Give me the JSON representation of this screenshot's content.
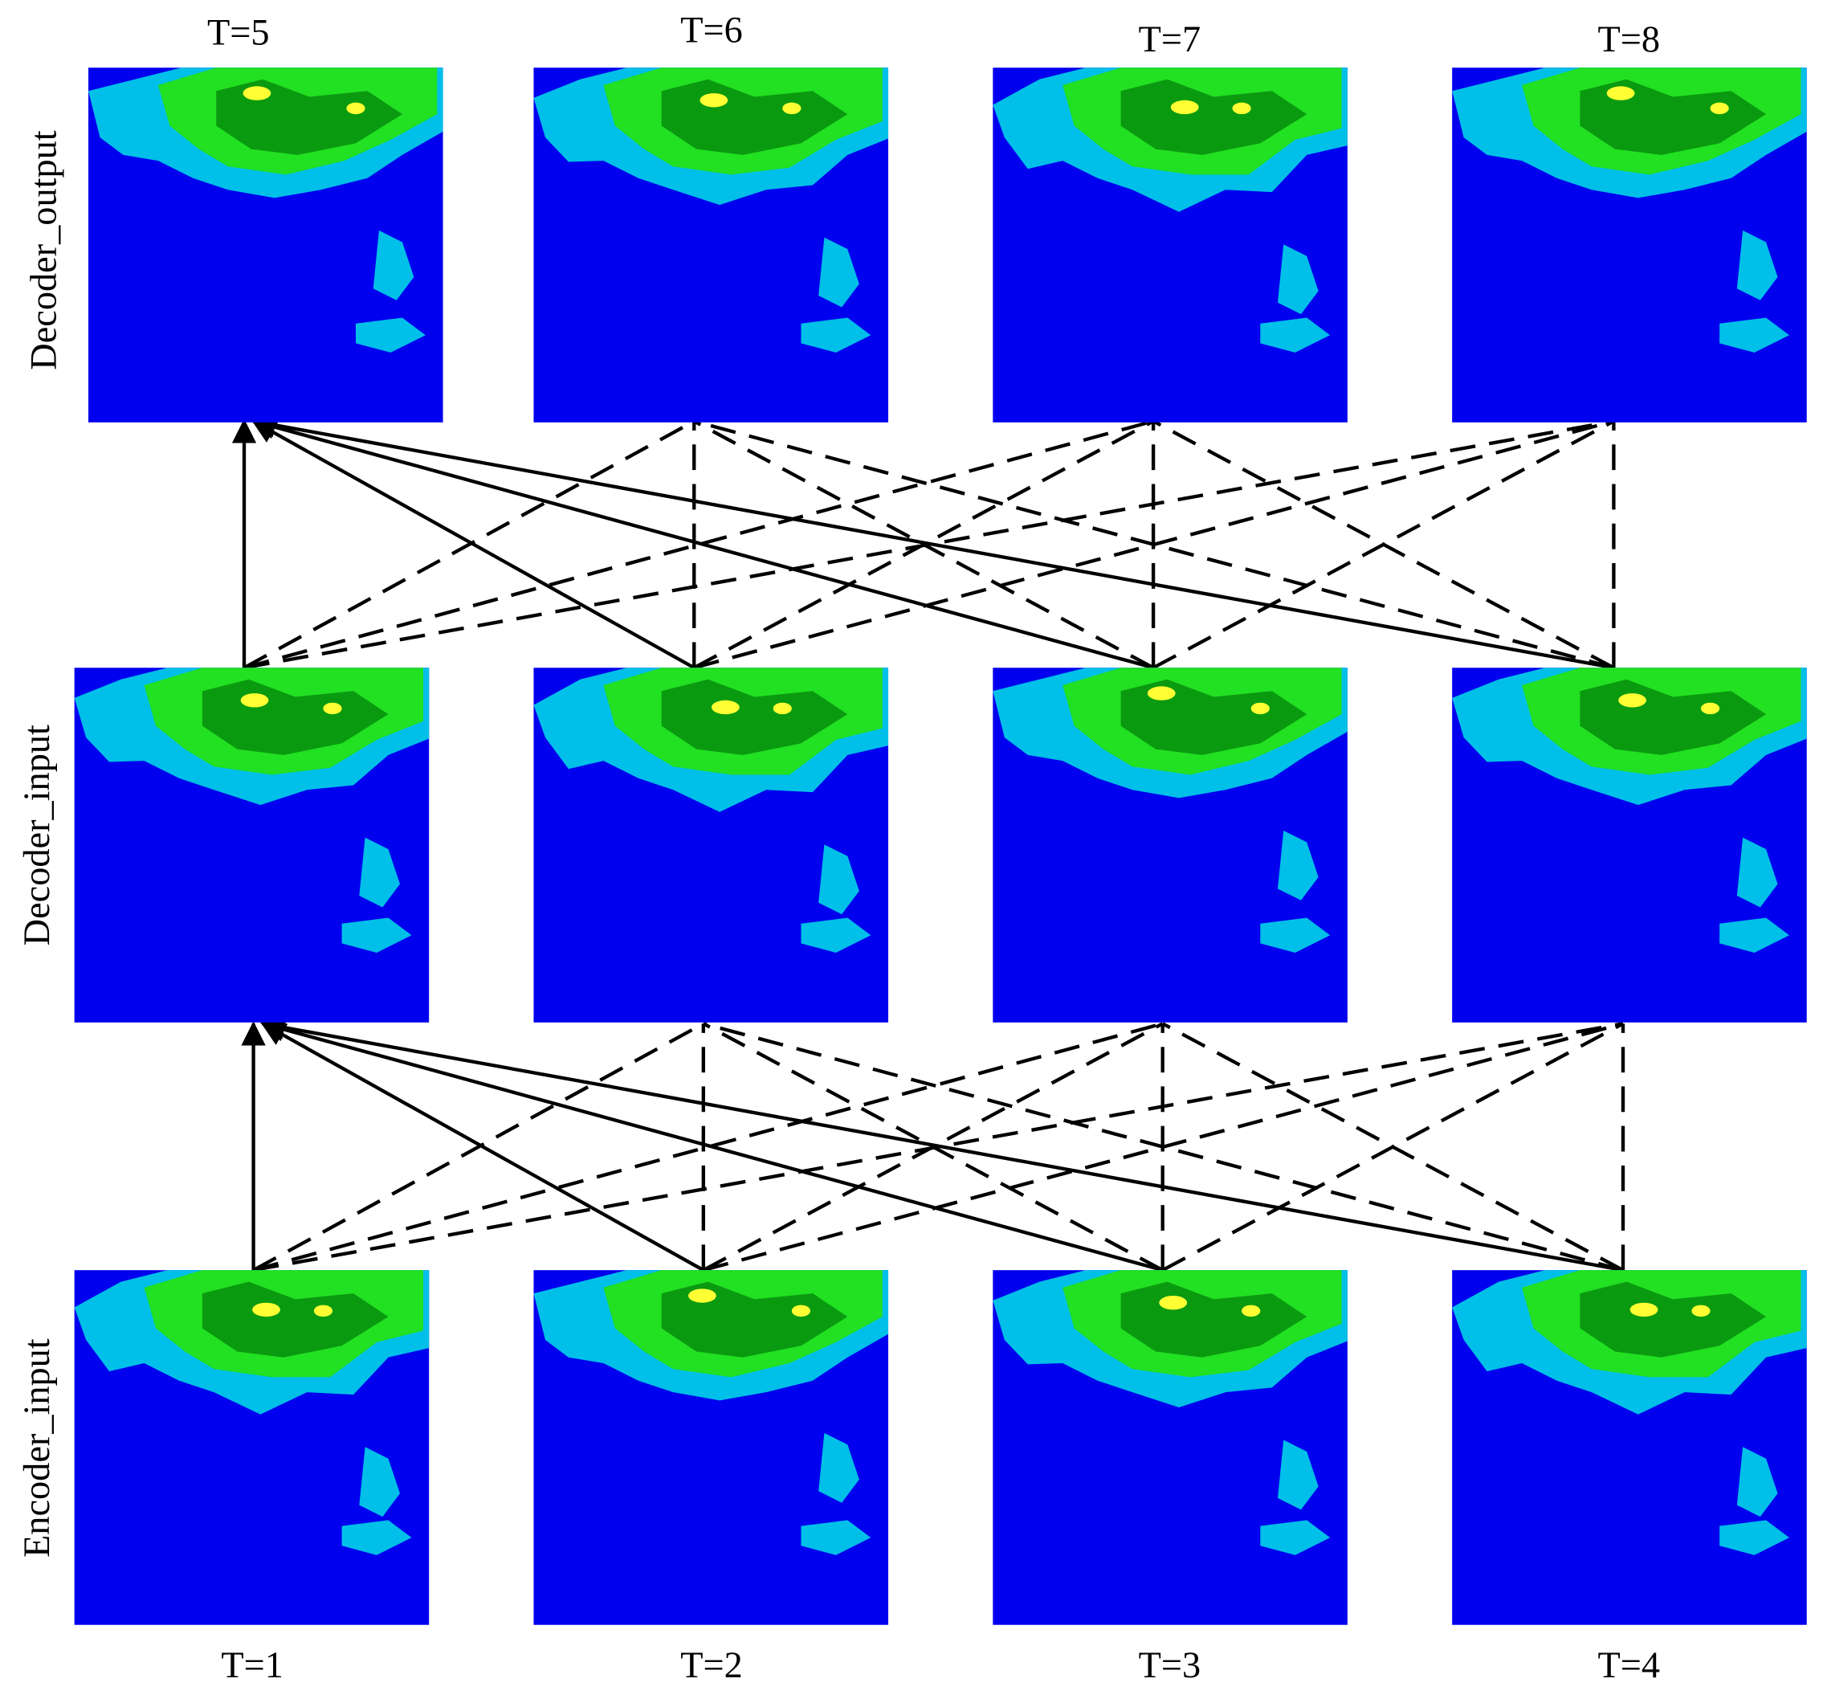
{
  "top_labels": [
    "T=5",
    "T=6",
    "T=7",
    "T=8"
  ],
  "bottom_labels": [
    "T=1",
    "T=2",
    "T=3",
    "T=4"
  ],
  "row_labels": [
    "Decoder_output",
    "Decoder_input",
    "Encoder_input"
  ]
}
